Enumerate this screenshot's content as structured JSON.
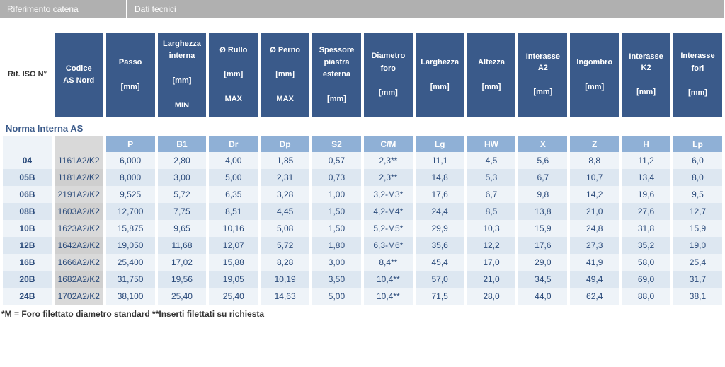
{
  "tabs": {
    "left": "Riferimento catena",
    "right": "Dati tecnici"
  },
  "colors": {
    "header_bg": "#3a5a8a",
    "header_fg": "#ffffff",
    "symbol_bg": "#8fb0d6",
    "row_even_bg": "#eef3f8",
    "row_odd_bg": "#dde7f1",
    "code_even_bg": "#d9d9d9",
    "code_odd_bg": "#cfcfcf",
    "tab_bg": "#b0b0b0",
    "text_blue": "#2a4a7a"
  },
  "headers": [
    {
      "lines": [
        "Rif. ISO N°"
      ]
    },
    {
      "lines": [
        "Codice",
        "AS Nord"
      ]
    },
    {
      "lines": [
        "Passo",
        "",
        "[mm]"
      ]
    },
    {
      "lines": [
        "Larghezza",
        "interna",
        "",
        "[mm]",
        "",
        "MIN"
      ]
    },
    {
      "lines": [
        "Ø Rullo",
        "",
        "[mm]",
        "",
        "MAX"
      ]
    },
    {
      "lines": [
        "Ø Perno",
        "",
        "[mm]",
        "",
        "MAX"
      ]
    },
    {
      "lines": [
        "Spessore",
        "piastra",
        "esterna",
        "",
        "[mm]"
      ]
    },
    {
      "lines": [
        "Diametro",
        "foro",
        "",
        "[mm]"
      ]
    },
    {
      "lines": [
        "Larghezza",
        "",
        "[mm]"
      ]
    },
    {
      "lines": [
        "Altezza",
        "",
        "[mm]"
      ]
    },
    {
      "lines": [
        "Interasse A2",
        "",
        "[mm]"
      ]
    },
    {
      "lines": [
        "Ingombro",
        "",
        "[mm]"
      ]
    },
    {
      "lines": [
        "Interasse K2",
        "",
        "[mm]"
      ]
    },
    {
      "lines": [
        "Interasse",
        "fori",
        "",
        "[mm]"
      ]
    }
  ],
  "section_title": "Norma Interna AS",
  "symbols": [
    "",
    "",
    "P",
    "B1",
    "Dr",
    "Dp",
    "S2",
    "C/M",
    "Lg",
    "HW",
    "X",
    "Z",
    "H",
    "Lp"
  ],
  "rows": [
    {
      "iso": "04",
      "code": "1161A2/K2",
      "vals": [
        "6,000",
        "2,80",
        "4,00",
        "1,85",
        "0,57",
        "2,3**",
        "11,1",
        "4,5",
        "5,6",
        "8,8",
        "11,2",
        "6,0"
      ]
    },
    {
      "iso": "05B",
      "code": "1181A2/K2",
      "vals": [
        "8,000",
        "3,00",
        "5,00",
        "2,31",
        "0,73",
        "2,3**",
        "14,8",
        "5,3",
        "6,7",
        "10,7",
        "13,4",
        "8,0"
      ]
    },
    {
      "iso": "06B",
      "code": "2191A2/K2",
      "vals": [
        "9,525",
        "5,72",
        "6,35",
        "3,28",
        "1,00",
        "3,2-M3*",
        "17,6",
        "6,7",
        "9,8",
        "14,2",
        "19,6",
        "9,5"
      ]
    },
    {
      "iso": "08B",
      "code": "1603A2/K2",
      "vals": [
        "12,700",
        "7,75",
        "8,51",
        "4,45",
        "1,50",
        "4,2-M4*",
        "24,4",
        "8,5",
        "13,8",
        "21,0",
        "27,6",
        "12,7"
      ]
    },
    {
      "iso": "10B",
      "code": "1623A2/K2",
      "vals": [
        "15,875",
        "9,65",
        "10,16",
        "5,08",
        "1,50",
        "5,2-M5*",
        "29,9",
        "10,3",
        "15,9",
        "24,8",
        "31,8",
        "15,9"
      ]
    },
    {
      "iso": "12B",
      "code": "1642A2/K2",
      "vals": [
        "19,050",
        "11,68",
        "12,07",
        "5,72",
        "1,80",
        "6,3-M6*",
        "35,6",
        "12,2",
        "17,6",
        "27,3",
        "35,2",
        "19,0"
      ]
    },
    {
      "iso": "16B",
      "code": "1666A2/K2",
      "vals": [
        "25,400",
        "17,02",
        "15,88",
        "8,28",
        "3,00",
        "8,4**",
        "45,4",
        "17,0",
        "29,0",
        "41,9",
        "58,0",
        "25,4"
      ]
    },
    {
      "iso": "20B",
      "code": "1682A2/K2",
      "vals": [
        "31,750",
        "19,56",
        "19,05",
        "10,19",
        "3,50",
        "10,4**",
        "57,0",
        "21,0",
        "34,5",
        "49,4",
        "69,0",
        "31,7"
      ]
    },
    {
      "iso": "24B",
      "code": "1702A2/K2",
      "vals": [
        "38,100",
        "25,40",
        "25,40",
        "14,63",
        "5,00",
        "10,4**",
        "71,5",
        "28,0",
        "44,0",
        "62,4",
        "88,0",
        "38,1"
      ]
    }
  ],
  "footnote": "*M = Foro filettato diametro standard **Inserti filettati su richiesta"
}
